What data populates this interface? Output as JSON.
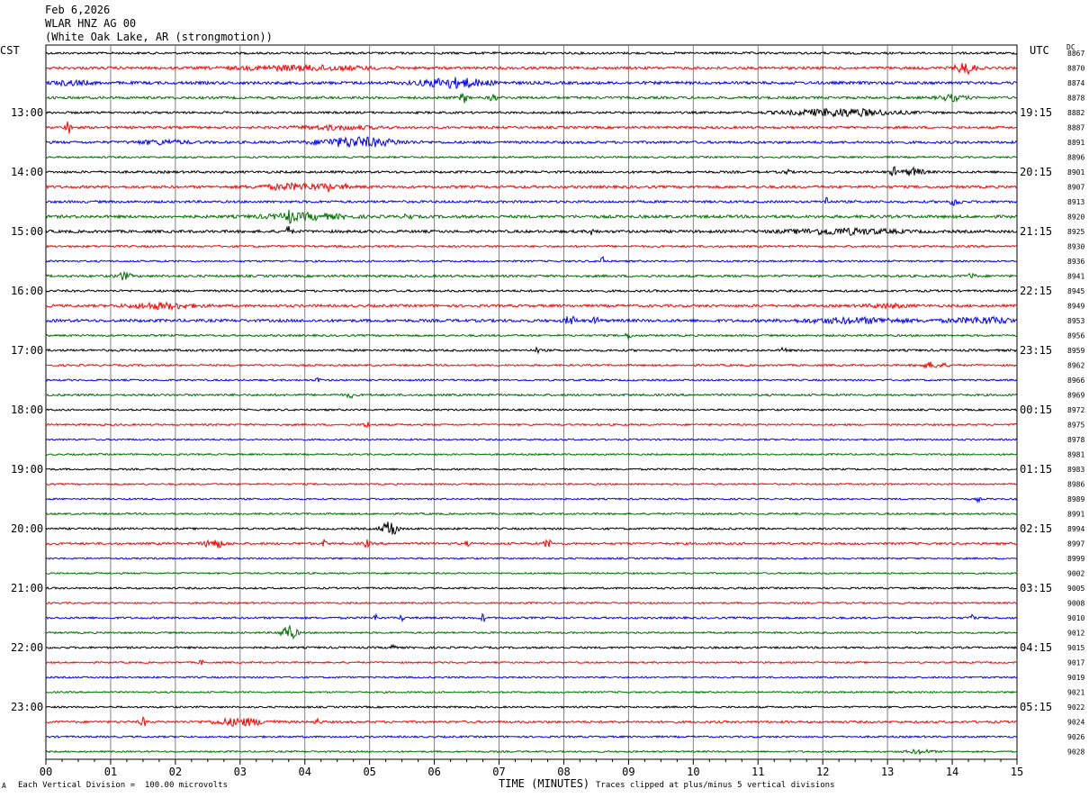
{
  "header": {
    "date": "Feb 6,2026",
    "station": "WLAR HNZ AG 00",
    "location": "(White Oak Lake, AR (strongmotion))"
  },
  "corners": {
    "left": "CST",
    "right": "UTC",
    "dc": "DC"
  },
  "footer": {
    "scale": "Each Vertical Division =  100.00 microvolts",
    "xlabel": "TIME (MINUTES)",
    "clip_note": "Traces clipped at plus/minus 5 vertical divisions",
    "logo_text": "A"
  },
  "colors": {
    "cycle": [
      "#000000",
      "#ff0000",
      "#0000ff",
      "#007000"
    ],
    "grid": "#808080"
  },
  "chart_data": {
    "type": "line",
    "title": "WLAR HNZ AG 00",
    "xlabel": "TIME (MINUTES)",
    "xlim": [
      0,
      15
    ],
    "x_ticks": [
      "00",
      "01",
      "02",
      "03",
      "04",
      "05",
      "06",
      "07",
      "08",
      "09",
      "10",
      "11",
      "12",
      "13",
      "14",
      "15"
    ],
    "rows_per_hour": 4,
    "left_time_labels": [
      "13:00",
      "14:00",
      "15:00",
      "16:00",
      "17:00",
      "18:00",
      "19:00",
      "20:00",
      "21:00",
      "22:00",
      "23:00"
    ],
    "right_time_labels": [
      "19:15",
      "20:15",
      "21:15",
      "22:15",
      "23:15",
      "00:15",
      "01:15",
      "02:15",
      "03:15",
      "04:15",
      "05:15"
    ],
    "dc_offsets": [
      8867,
      8870,
      8874,
      8878,
      8882,
      8887,
      8891,
      8896,
      8901,
      8907,
      8913,
      8920,
      8925,
      8930,
      8936,
      8941,
      8945,
      8949,
      8953,
      8956,
      8959,
      8962,
      8966,
      8969,
      8972,
      8975,
      8978,
      8981,
      8983,
      8986,
      8989,
      8991,
      8994,
      8997,
      8999,
      9002,
      9005,
      9008,
      9010,
      9012,
      9015,
      9017,
      9019,
      9021,
      9022,
      9024,
      9026,
      9028
    ],
    "series": [
      {
        "row": 0,
        "noise": 1.2,
        "events": []
      },
      {
        "row": 1,
        "noise": 1.4,
        "events": [
          [
            4.0,
            1.0,
            2.5
          ],
          [
            14.2,
            0.15,
            6
          ]
        ]
      },
      {
        "row": 2,
        "noise": 1.6,
        "events": [
          [
            6.3,
            0.5,
            5
          ],
          [
            0.4,
            0.3,
            2
          ]
        ]
      },
      {
        "row": 3,
        "noise": 1.4,
        "events": [
          [
            6.45,
            0.05,
            6
          ],
          [
            6.9,
            0.05,
            4
          ],
          [
            14.0,
            0.2,
            3
          ]
        ]
      },
      {
        "row": 4,
        "noise": 1.2,
        "events": [
          [
            12.3,
            0.8,
            4
          ]
        ]
      },
      {
        "row": 5,
        "noise": 1.3,
        "events": [
          [
            0.35,
            0.05,
            7
          ],
          [
            4.5,
            0.6,
            2
          ]
        ]
      },
      {
        "row": 6,
        "noise": 1.4,
        "events": [
          [
            4.8,
            0.6,
            5
          ],
          [
            1.8,
            0.4,
            2
          ]
        ]
      },
      {
        "row": 7,
        "noise": 1.0,
        "events": []
      },
      {
        "row": 8,
        "noise": 1.3,
        "events": [
          [
            11.45,
            0.03,
            6
          ],
          [
            13.1,
            0.05,
            5
          ],
          [
            13.4,
            0.15,
            4
          ]
        ]
      },
      {
        "row": 9,
        "noise": 1.4,
        "events": [
          [
            3.9,
            0.6,
            3
          ],
          [
            4.35,
            0.03,
            5
          ],
          [
            4.6,
            0.03,
            4
          ]
        ]
      },
      {
        "row": 10,
        "noise": 1.3,
        "events": [
          [
            12.05,
            0.03,
            7
          ],
          [
            14.05,
            0.08,
            4
          ]
        ]
      },
      {
        "row": 11,
        "noise": 1.6,
        "events": [
          [
            3.75,
            0.05,
            6
          ],
          [
            4.0,
            0.6,
            3
          ],
          [
            5.6,
            0.05,
            4
          ]
        ]
      },
      {
        "row": 12,
        "noise": 1.5,
        "events": [
          [
            3.75,
            0.05,
            5
          ],
          [
            8.45,
            0.04,
            5
          ],
          [
            12.3,
            0.8,
            3
          ]
        ]
      },
      {
        "row": 13,
        "noise": 1.1,
        "events": []
      },
      {
        "row": 14,
        "noise": 1.0,
        "events": [
          [
            8.6,
            0.03,
            8
          ]
        ]
      },
      {
        "row": 15,
        "noise": 1.3,
        "events": [
          [
            1.2,
            0.1,
            4
          ],
          [
            14.3,
            0.05,
            3
          ]
        ]
      },
      {
        "row": 16,
        "noise": 1.2,
        "events": []
      },
      {
        "row": 17,
        "noise": 1.4,
        "events": [
          [
            1.8,
            0.5,
            3
          ],
          [
            13.0,
            0.3,
            2
          ]
        ]
      },
      {
        "row": 18,
        "noise": 1.6,
        "events": [
          [
            8.1,
            0.08,
            5
          ],
          [
            8.5,
            0.05,
            4
          ],
          [
            12.5,
            0.8,
            2.5
          ],
          [
            14.5,
            0.5,
            3
          ]
        ]
      },
      {
        "row": 19,
        "noise": 1.1,
        "events": [
          [
            9.0,
            0.05,
            3
          ]
        ]
      },
      {
        "row": 20,
        "noise": 1.2,
        "events": [
          [
            7.6,
            0.03,
            4
          ],
          [
            11.4,
            0.03,
            5
          ]
        ]
      },
      {
        "row": 21,
        "noise": 1.0,
        "events": [
          [
            13.7,
            0.2,
            3
          ]
        ]
      },
      {
        "row": 22,
        "noise": 1.0,
        "events": [
          [
            4.2,
            0.03,
            4
          ]
        ]
      },
      {
        "row": 23,
        "noise": 1.2,
        "events": [
          [
            4.7,
            0.05,
            3
          ]
        ]
      },
      {
        "row": 24,
        "noise": 1.0,
        "events": []
      },
      {
        "row": 25,
        "noise": 1.0,
        "events": [
          [
            4.95,
            0.04,
            4
          ]
        ]
      },
      {
        "row": 26,
        "noise": 0.9,
        "events": []
      },
      {
        "row": 27,
        "noise": 0.9,
        "events": []
      },
      {
        "row": 28,
        "noise": 1.0,
        "events": []
      },
      {
        "row": 29,
        "noise": 0.9,
        "events": []
      },
      {
        "row": 30,
        "noise": 0.9,
        "events": [
          [
            14.4,
            0.03,
            3
          ]
        ]
      },
      {
        "row": 31,
        "noise": 1.0,
        "events": []
      },
      {
        "row": 32,
        "noise": 1.1,
        "events": [
          [
            5.35,
            0.08,
            8
          ],
          [
            5.25,
            0.1,
            4
          ]
        ]
      },
      {
        "row": 33,
        "noise": 1.2,
        "events": [
          [
            2.6,
            0.15,
            5
          ],
          [
            4.3,
            0.03,
            4
          ],
          [
            4.95,
            0.05,
            4
          ],
          [
            7.75,
            0.05,
            5
          ],
          [
            6.5,
            0.03,
            3
          ]
        ]
      },
      {
        "row": 34,
        "noise": 0.9,
        "events": []
      },
      {
        "row": 35,
        "noise": 0.9,
        "events": []
      },
      {
        "row": 36,
        "noise": 1.0,
        "events": []
      },
      {
        "row": 37,
        "noise": 0.9,
        "events": []
      },
      {
        "row": 38,
        "noise": 1.1,
        "events": [
          [
            5.1,
            0.03,
            4
          ],
          [
            5.5,
            0.03,
            4
          ],
          [
            6.75,
            0.03,
            5
          ],
          [
            14.3,
            0.03,
            4
          ]
        ]
      },
      {
        "row": 39,
        "noise": 1.0,
        "events": [
          [
            3.75,
            0.12,
            8
          ]
        ]
      },
      {
        "row": 40,
        "noise": 1.1,
        "events": [
          [
            5.35,
            0.03,
            9
          ]
        ]
      },
      {
        "row": 41,
        "noise": 0.9,
        "events": [
          [
            2.4,
            0.03,
            3
          ]
        ]
      },
      {
        "row": 42,
        "noise": 0.9,
        "events": []
      },
      {
        "row": 43,
        "noise": 0.9,
        "events": []
      },
      {
        "row": 44,
        "noise": 1.0,
        "events": []
      },
      {
        "row": 45,
        "noise": 1.2,
        "events": [
          [
            1.5,
            0.05,
            5
          ],
          [
            3.0,
            0.4,
            4
          ],
          [
            4.2,
            0.05,
            3
          ]
        ]
      },
      {
        "row": 46,
        "noise": 1.0,
        "events": []
      },
      {
        "row": 47,
        "noise": 0.9,
        "events": [
          [
            13.5,
            0.2,
            2
          ]
        ]
      }
    ]
  }
}
